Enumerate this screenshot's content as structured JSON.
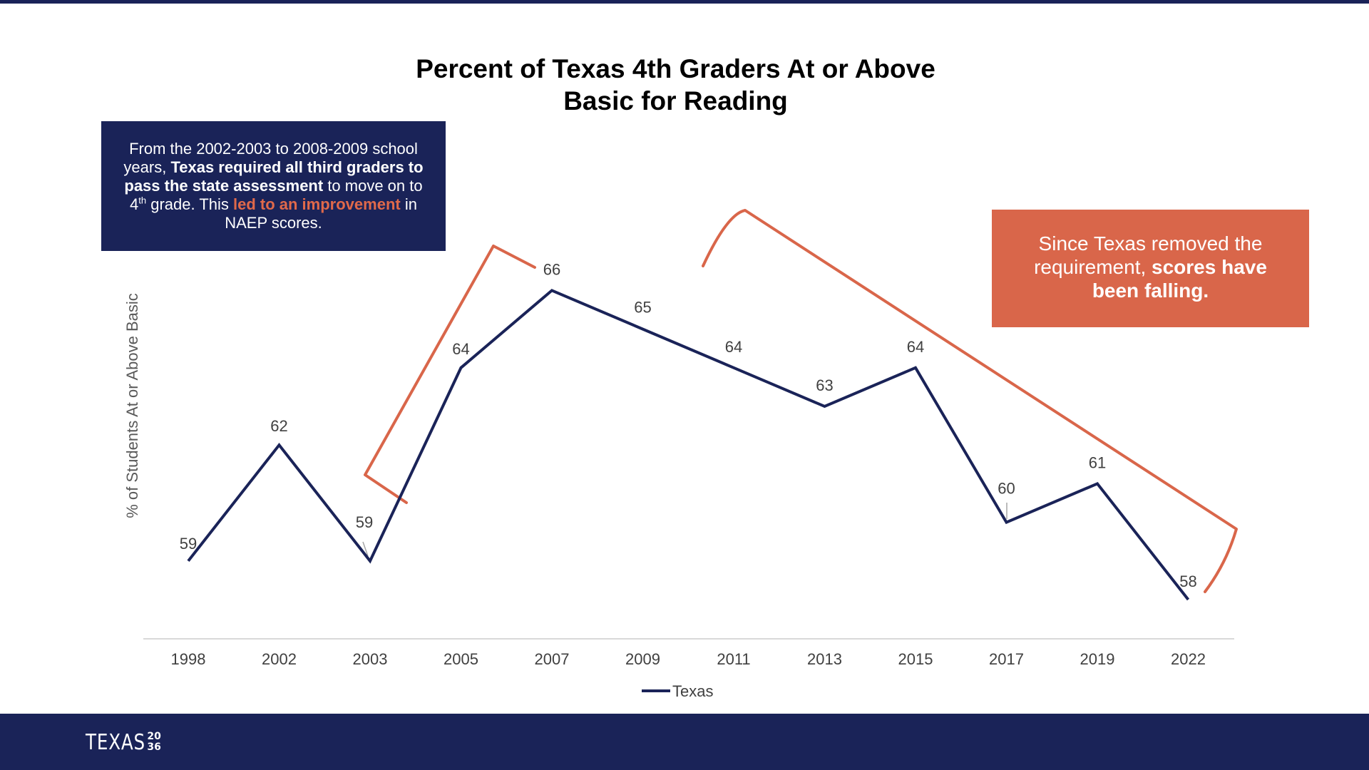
{
  "chart_data": {
    "type": "line",
    "title": "Percent of Texas 4th Graders At or Above Basic for Reading",
    "ylabel": "% of Students At or Above Basic",
    "xlabel": "",
    "categories": [
      "1998",
      "2002",
      "2003",
      "2005",
      "2007",
      "2009",
      "2011",
      "2013",
      "2015",
      "2017",
      "2019",
      "2022"
    ],
    "series": [
      {
        "name": "Texas",
        "color": "#1a2358",
        "values": [
          59,
          62,
          59,
          64,
          66,
          65,
          64,
          63,
          64,
          60,
          61,
          58
        ]
      }
    ],
    "ylim": [
      56,
      70
    ],
    "grid": false,
    "legend_position": "bottom"
  },
  "callouts": {
    "left": {
      "part1": "From the 2002-2003 to 2008-2009 school years, ",
      "bold": "Texas required all third graders to pass the state assessment",
      "part2": " to move on to 4",
      "sup": "th",
      "part3": " grade. This ",
      "accent": "led to an improvement",
      "part4": " in NAEP scores."
    },
    "right": {
      "part1": "Since Texas removed the requirement, ",
      "bold": "scores have been falling."
    }
  },
  "colors": {
    "navy": "#1a2358",
    "orange": "#d9664a"
  },
  "footer": {
    "logo_text": "TEXAS",
    "logo_mark_top": "20",
    "logo_mark_bottom": "36"
  }
}
